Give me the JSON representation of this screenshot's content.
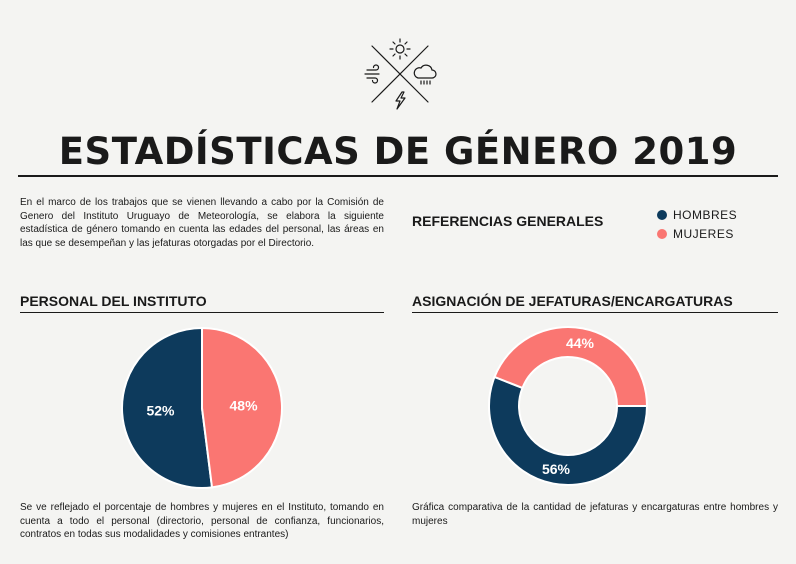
{
  "header": {
    "title": "ESTADÍSTICAS DE GÉNERO 2019",
    "logo_icons": [
      "sun-icon",
      "wind-icon",
      "rain-cloud-icon",
      "lightning-icon"
    ]
  },
  "intro_text": "En el marco de los trabajos que se vienen llevando a cabo por la Comisión de Genero del Instituto Uruguayo de Meteorología, se elabora la siguiente estadística de género tomando en cuenta las edades del personal, las áreas en las que se desempeñan y las jefaturas otorgadas por el Directorio.",
  "references": {
    "title": "REFERENCIAS GENERALES",
    "items": [
      {
        "label": "HOMBRES",
        "color": "#0d3a5c"
      },
      {
        "label": "MUJERES",
        "color": "#fa7672"
      }
    ]
  },
  "sections": {
    "personal": {
      "title": "PERSONAL DEL INSTITUTO",
      "caption": "Se ve reflejado el porcentaje de hombres y mujeres en el Instituto, tomando en cuenta a todo el personal (directorio, personal de confianza, funcionarios, contratos en todas sus modalidades y comisiones entrantes)"
    },
    "jefaturas": {
      "title": "ASIGNACIÓN DE JEFATURAS/ENCARGATURAS",
      "caption": "Gráfica comparativa de la cantidad de jefaturas y encargaturas entre hombres y mujeres"
    }
  },
  "chart_data": [
    {
      "type": "pie",
      "title": "PERSONAL DEL INSTITUTO",
      "categories": [
        "HOMBRES",
        "MUJERES"
      ],
      "values": [
        52,
        48
      ],
      "labels": [
        "52%",
        "48%"
      ],
      "colors": [
        "#0d3a5c",
        "#fa7672"
      ]
    },
    {
      "type": "pie",
      "variant": "donut",
      "title": "ASIGNACIÓN DE JEFATURAS/ENCARGATURAS",
      "categories": [
        "HOMBRES",
        "MUJERES"
      ],
      "values": [
        56,
        44
      ],
      "labels": [
        "56%",
        "44%"
      ],
      "colors": [
        "#0d3a5c",
        "#fa7672"
      ]
    }
  ]
}
